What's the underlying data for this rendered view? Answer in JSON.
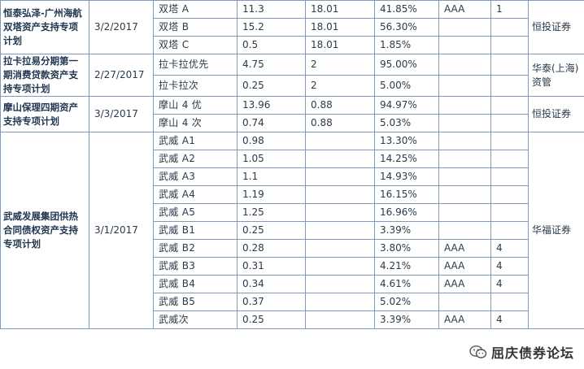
{
  "groups": [
    {
      "product": "恒泰弘泽-广州海航双塔资产支持专项计划",
      "date": "3/2/2017",
      "broker": "恒投证券",
      "tranches": [
        {
          "name": "双塔 A",
          "amount": "11.3",
          "term": "18.01",
          "share": "41.85%",
          "rating": "AAA",
          "extra": "1"
        },
        {
          "name": "双塔 B",
          "amount": "15.2",
          "term": "18.01",
          "share": "56.30%",
          "rating": "",
          "extra": ""
        },
        {
          "name": "双塔 C",
          "amount": "0.5",
          "term": "18.01",
          "share": "1.85%",
          "rating": "",
          "extra": ""
        }
      ]
    },
    {
      "product": "拉卡拉易分期第一期消费贷款资产支持专项计划",
      "date": "2/27/2017",
      "broker": "华泰(上海)资管",
      "tranches": [
        {
          "name": "拉卡拉优先",
          "amount": "4.75",
          "term": "2",
          "share": "95.00%",
          "rating": "",
          "extra": ""
        },
        {
          "name": "拉卡拉次",
          "amount": "0.25",
          "term": "2",
          "share": "5.00%",
          "rating": "",
          "extra": ""
        }
      ]
    },
    {
      "product": "摩山保理四期资产支持专项计划",
      "date": "3/3/2017",
      "broker": "恒投证券",
      "tranches": [
        {
          "name": "摩山 4 优",
          "amount": "13.96",
          "term": "0.88",
          "share": "94.97%",
          "rating": "",
          "extra": ""
        },
        {
          "name": "摩山 4 次",
          "amount": "0.74",
          "term": "0.88",
          "share": "5.03%",
          "rating": "",
          "extra": ""
        }
      ]
    },
    {
      "product": "武威发展集团供热合同债权资产支持专项计划",
      "date": "3/1/2017",
      "broker": "华福证券",
      "tranches": [
        {
          "name": "武威 A1",
          "amount": "0.98",
          "term": "",
          "share": "13.30%",
          "rating": "",
          "extra": ""
        },
        {
          "name": "武威 A2",
          "amount": "1.05",
          "term": "",
          "share": "14.25%",
          "rating": "",
          "extra": ""
        },
        {
          "name": "武威 A3",
          "amount": "1.1",
          "term": "",
          "share": "14.93%",
          "rating": "",
          "extra": ""
        },
        {
          "name": "武威 A4",
          "amount": "1.19",
          "term": "",
          "share": "16.15%",
          "rating": "",
          "extra": ""
        },
        {
          "name": "武威 A5",
          "amount": "1.25",
          "term": "",
          "share": "16.96%",
          "rating": "",
          "extra": ""
        },
        {
          "name": "武威 B1",
          "amount": "0.25",
          "term": "",
          "share": "3.39%",
          "rating": "",
          "extra": ""
        },
        {
          "name": "武威 B2",
          "amount": "0.28",
          "term": "",
          "share": "3.80%",
          "rating": "AAA",
          "extra": "4"
        },
        {
          "name": "武威 B3",
          "amount": "0.31",
          "term": "",
          "share": "4.21%",
          "rating": "AAA",
          "extra": "4"
        },
        {
          "name": "武威 B4",
          "amount": "0.34",
          "term": "",
          "share": "4.61%",
          "rating": "AAA",
          "extra": "4"
        },
        {
          "name": "武威 B5",
          "amount": "0.37",
          "term": "",
          "share": "5.02%",
          "rating": "",
          "extra": ""
        },
        {
          "name": "武威次",
          "amount": "0.25",
          "term": "",
          "share": "3.39%",
          "rating": "AAA",
          "extra": "4"
        }
      ]
    }
  ],
  "watermark": {
    "text": "屈庆债券论坛",
    "icon": "wechat-icon"
  }
}
